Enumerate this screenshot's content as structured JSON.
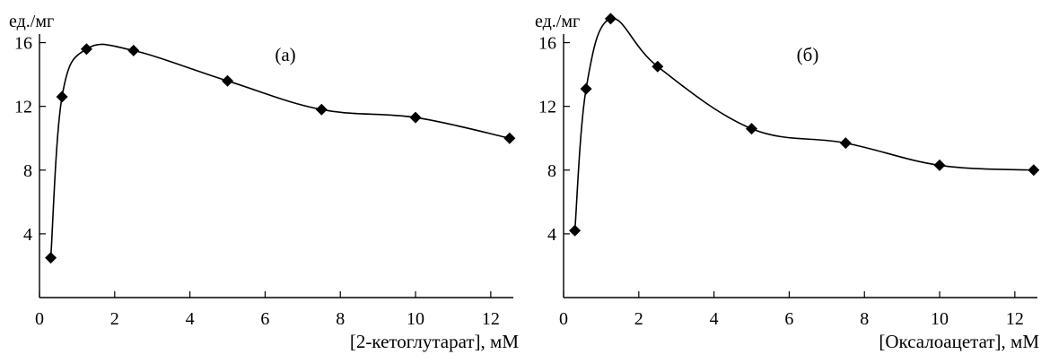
{
  "chart_data": [
    {
      "type": "scatter",
      "title": "(а)",
      "ylabel": "ед./мг",
      "xlabel": "[2-кетоглутарат], мМ",
      "xlim": [
        0,
        12.6
      ],
      "ylim": [
        0,
        18
      ],
      "xticks": [
        0,
        2,
        4,
        6,
        8,
        10,
        12
      ],
      "yticks": [
        4,
        8,
        12,
        16
      ],
      "grid": false,
      "series": [
        {
          "x": [
            0.3,
            0.6,
            1.25,
            2.5,
            5.0,
            7.5,
            10.0,
            12.5
          ],
          "y": [
            2.5,
            12.6,
            15.6,
            15.5,
            13.6,
            11.8,
            11.3,
            10.0
          ]
        }
      ]
    },
    {
      "type": "scatter",
      "title": "(б)",
      "ylabel": "ед./мг",
      "xlabel": "[Оксалоацетат], мМ",
      "xlim": [
        0,
        12.6
      ],
      "ylim": [
        0,
        18
      ],
      "xticks": [
        0,
        2,
        4,
        6,
        8,
        10,
        12
      ],
      "yticks": [
        4,
        8,
        12,
        16
      ],
      "grid": false,
      "series": [
        {
          "x": [
            0.3,
            0.6,
            1.25,
            2.5,
            5.0,
            7.5,
            10.0,
            12.5
          ],
          "y": [
            4.2,
            13.1,
            17.5,
            14.5,
            10.6,
            9.7,
            8.3,
            8.0
          ]
        }
      ]
    }
  ]
}
